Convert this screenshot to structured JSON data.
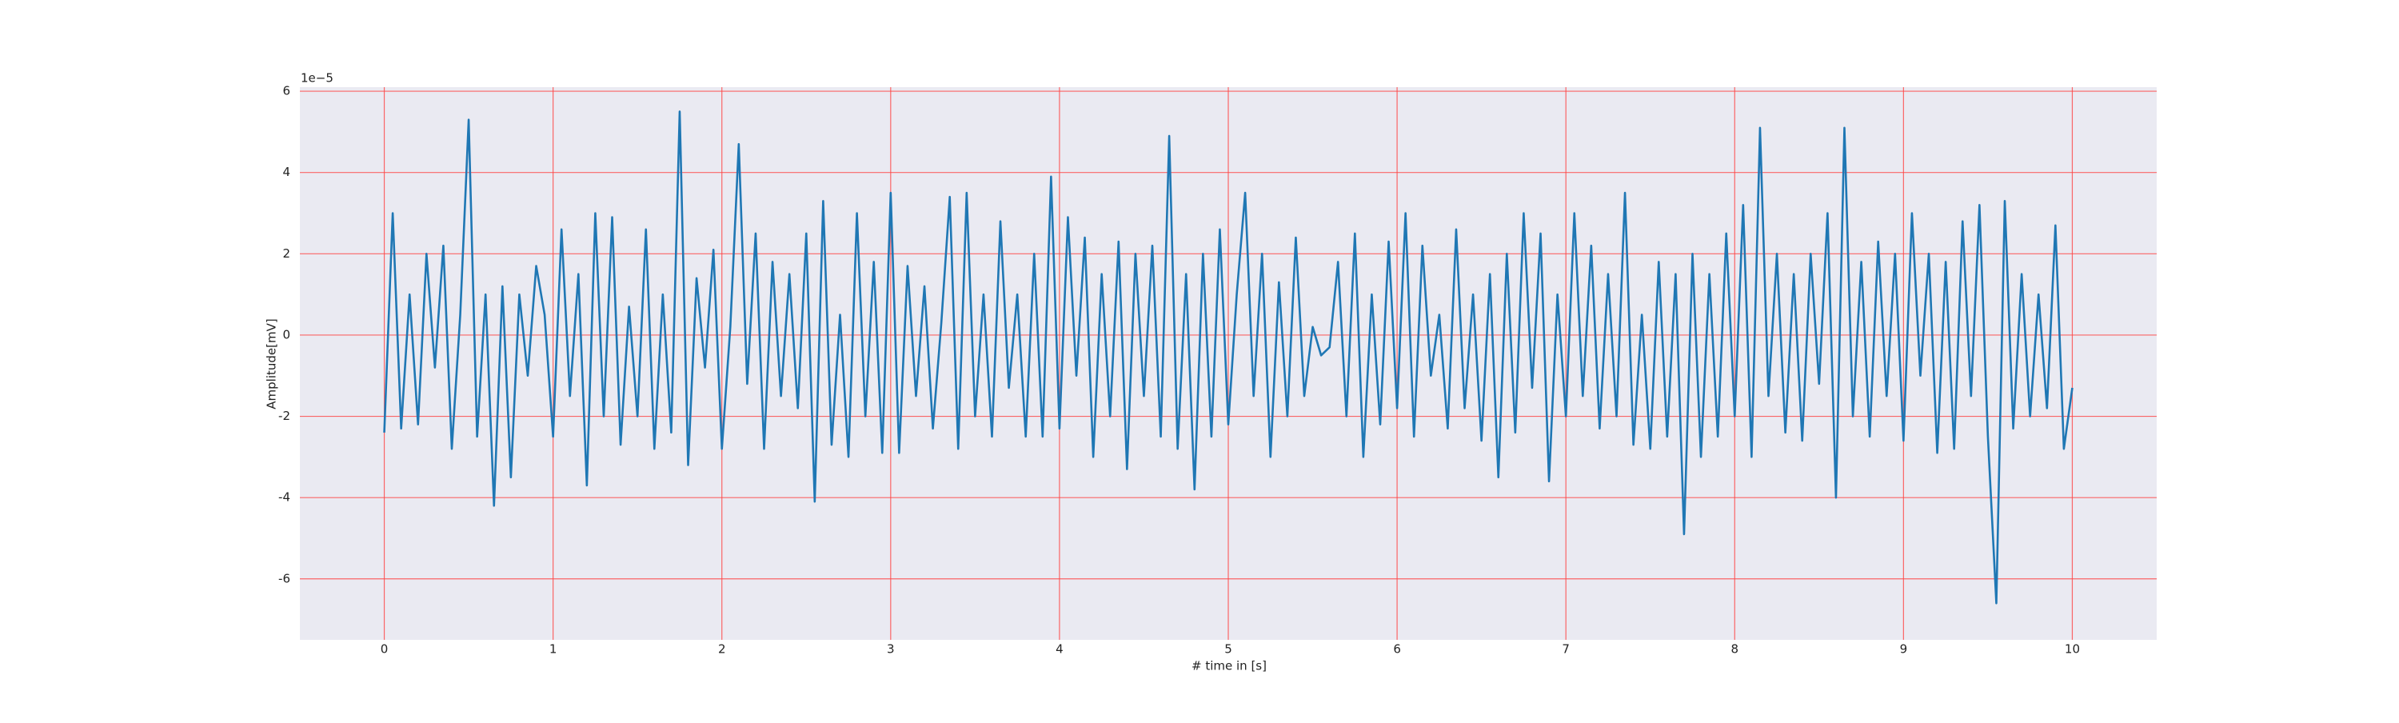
{
  "chart_data": {
    "type": "line",
    "x_label": "# time in [s]",
    "y_label": "Amplitude[mV]",
    "y_offset_label": "1e−5",
    "x": [
      0,
      0.05,
      0.1,
      0.15,
      0.2,
      0.25,
      0.3,
      0.35,
      0.4,
      0.45,
      0.5,
      0.55,
      0.6,
      0.65,
      0.7,
      0.75,
      0.8,
      0.85,
      0.9,
      0.95,
      1,
      1.05,
      1.1,
      1.15,
      1.2,
      1.25,
      1.3,
      1.35,
      1.4,
      1.45,
      1.5,
      1.55,
      1.6,
      1.65,
      1.7,
      1.75,
      1.8,
      1.85,
      1.9,
      1.95,
      2,
      2.05,
      2.1,
      2.15,
      2.2,
      2.25,
      2.3,
      2.35,
      2.4,
      2.45,
      2.5,
      2.55,
      2.6,
      2.65,
      2.7,
      2.75,
      2.8,
      2.85,
      2.9,
      2.95,
      3,
      3.05,
      3.1,
      3.15,
      3.2,
      3.25,
      3.3,
      3.35,
      3.4,
      3.45,
      3.5,
      3.55,
      3.6,
      3.65,
      3.7,
      3.75,
      3.8,
      3.85,
      3.9,
      3.95,
      4,
      4.05,
      4.1,
      4.15,
      4.2,
      4.25,
      4.3,
      4.35,
      4.4,
      4.45,
      4.5,
      4.55,
      4.6,
      4.65,
      4.7,
      4.75,
      4.8,
      4.85,
      4.9,
      4.95,
      5,
      5.05,
      5.1,
      5.15,
      5.2,
      5.25,
      5.3,
      5.35,
      5.4,
      5.45,
      5.5,
      5.55,
      5.6,
      5.65,
      5.7,
      5.75,
      5.8,
      5.85,
      5.9,
      5.95,
      6,
      6.05,
      6.1,
      6.15,
      6.2,
      6.25,
      6.3,
      6.35,
      6.4,
      6.45,
      6.5,
      6.55,
      6.6,
      6.65,
      6.7,
      6.75,
      6.8,
      6.85,
      6.9,
      6.95,
      7,
      7.05,
      7.1,
      7.15,
      7.2,
      7.25,
      7.3,
      7.35,
      7.4,
      7.45,
      7.5,
      7.55,
      7.6,
      7.65,
      7.7,
      7.75,
      7.8,
      7.85,
      7.9,
      7.95,
      8,
      8.05,
      8.1,
      8.15,
      8.2,
      8.25,
      8.3,
      8.35,
      8.4,
      8.45,
      8.5,
      8.55,
      8.6,
      8.65,
      8.7,
      8.75,
      8.8,
      8.85,
      8.9,
      8.95,
      9,
      9.05,
      9.1,
      9.15,
      9.2,
      9.25,
      9.3,
      9.35,
      9.4,
      9.45,
      9.5,
      9.55,
      9.6,
      9.65,
      9.7,
      9.75,
      9.8,
      9.85,
      9.9,
      9.95,
      10
    ],
    "series": [
      {
        "color": "#1f77b4",
        "values": [
          -2.4,
          3.0,
          -2.3,
          1.0,
          -2.2,
          2.0,
          -0.8,
          2.2,
          -2.8,
          0.5,
          5.3,
          -2.5,
          1.0,
          -4.2,
          1.2,
          -3.5,
          1.0,
          -1.0,
          1.7,
          0.5,
          -2.5,
          2.6,
          -1.5,
          1.5,
          -3.7,
          3.0,
          -2.0,
          2.9,
          -2.7,
          0.7,
          -2.0,
          2.6,
          -2.8,
          1.0,
          -2.4,
          5.5,
          -3.2,
          1.4,
          -0.8,
          2.1,
          -2.8,
          0.2,
          4.7,
          -1.2,
          2.5,
          -2.8,
          1.8,
          -1.5,
          1.5,
          -1.8,
          2.5,
          -4.1,
          3.3,
          -2.7,
          0.5,
          -3.0,
          3.0,
          -2.0,
          1.8,
          -2.9,
          3.5,
          -2.9,
          1.7,
          -1.5,
          1.2,
          -2.3,
          0.3,
          3.4,
          -2.8,
          3.5,
          -2.0,
          1.0,
          -2.5,
          2.8,
          -1.3,
          1.0,
          -2.5,
          2.0,
          -2.5,
          3.9,
          -2.3,
          2.9,
          -1.0,
          2.4,
          -3.0,
          1.5,
          -2.0,
          2.3,
          -3.3,
          2.0,
          -1.5,
          2.2,
          -2.5,
          4.9,
          -2.8,
          1.5,
          -3.8,
          2.0,
          -2.5,
          2.6,
          -2.2,
          1.0,
          3.5,
          -1.5,
          2.0,
          -3.0,
          1.3,
          -2.0,
          2.4,
          -1.5,
          0.2,
          -0.5,
          -0.3,
          1.8,
          -2.0,
          2.5,
          -3.0,
          1.0,
          -2.2,
          2.3,
          -1.8,
          3.0,
          -2.5,
          2.2,
          -1.0,
          0.5,
          -2.3,
          2.6,
          -1.8,
          1.0,
          -2.6,
          1.5,
          -3.5,
          2.0,
          -2.4,
          3.0,
          -1.3,
          2.5,
          -3.6,
          1.0,
          -2.0,
          3.0,
          -1.5,
          2.2,
          -2.3,
          1.5,
          -2.0,
          3.5,
          -2.7,
          0.5,
          -2.8,
          1.8,
          -2.5,
          1.5,
          -4.9,
          2.0,
          -3.0,
          1.5,
          -2.5,
          2.5,
          -2.0,
          3.2,
          -3.0,
          5.1,
          -1.5,
          2.0,
          -2.4,
          1.5,
          -2.6,
          2.0,
          -1.2,
          3.0,
          -4.0,
          5.1,
          -2.0,
          1.8,
          -2.5,
          2.3,
          -1.5,
          2.0,
          -2.6,
          3.0,
          -1.0,
          2.0,
          -2.9,
          1.8,
          -2.8,
          2.8,
          -1.5,
          3.2,
          -2.5,
          -6.6,
          3.3,
          -2.3,
          1.5,
          -2.0,
          1.0,
          -1.8,
          2.7,
          -2.8,
          -1.3
        ]
      }
    ],
    "xlim": [
      -0.5,
      10.5
    ],
    "ylim": [
      -7.5,
      6.1
    ],
    "xticks": [
      0,
      1,
      2,
      3,
      4,
      5,
      6,
      7,
      8,
      9,
      10
    ],
    "yticks": [
      -6,
      -4,
      -2,
      0,
      2,
      4,
      6
    ],
    "grid": true,
    "grid_color": "#ff4444",
    "plot_background": "#eaeaf2"
  }
}
